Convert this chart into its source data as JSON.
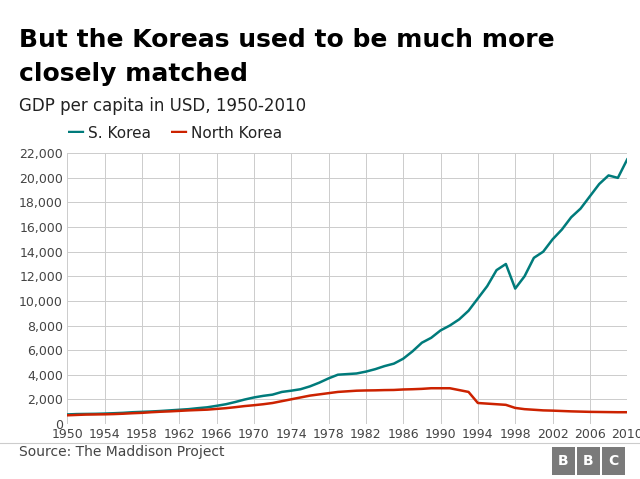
{
  "title_line1": "But the Koreas used to be much more",
  "title_line2": "closely matched",
  "subtitle": "GDP per capita in USD, 1950-2010",
  "legend_s_korea": "S. Korea",
  "legend_n_korea": "North Korea",
  "source": "Source: The Maddison Project",
  "bbc_label": "BBC",
  "s_korea_color": "#007b7b",
  "n_korea_color": "#cc2200",
  "background_color": "#ffffff",
  "grid_color": "#cccccc",
  "years": [
    1950,
    1951,
    1952,
    1953,
    1954,
    1955,
    1956,
    1957,
    1958,
    1959,
    1960,
    1961,
    1962,
    1963,
    1964,
    1965,
    1966,
    1967,
    1968,
    1969,
    1970,
    1971,
    1972,
    1973,
    1974,
    1975,
    1976,
    1977,
    1978,
    1979,
    1980,
    1981,
    1982,
    1983,
    1984,
    1985,
    1986,
    1987,
    1988,
    1989,
    1990,
    1991,
    1992,
    1993,
    1994,
    1995,
    1996,
    1997,
    1998,
    1999,
    2000,
    2001,
    2002,
    2003,
    2004,
    2005,
    2006,
    2007,
    2008,
    2009,
    2010
  ],
  "s_korea_gdp": [
    770,
    800,
    810,
    820,
    840,
    870,
    900,
    950,
    980,
    1010,
    1050,
    1100,
    1150,
    1200,
    1280,
    1350,
    1470,
    1600,
    1780,
    1980,
    2150,
    2280,
    2380,
    2600,
    2700,
    2820,
    3050,
    3350,
    3700,
    4000,
    4050,
    4100,
    4250,
    4450,
    4700,
    4900,
    5300,
    5900,
    6600,
    7000,
    7600,
    8000,
    8500,
    9200,
    10200,
    11200,
    12500,
    13000,
    11000,
    12000,
    13500,
    14000,
    15000,
    15800,
    16800,
    17500,
    18500,
    19500,
    20200,
    20000,
    21500
  ],
  "n_korea_gdp": [
    700,
    730,
    760,
    770,
    780,
    800,
    830,
    870,
    900,
    950,
    990,
    1020,
    1060,
    1100,
    1130,
    1160,
    1220,
    1280,
    1360,
    1450,
    1520,
    1600,
    1700,
    1850,
    2000,
    2150,
    2300,
    2400,
    2500,
    2600,
    2650,
    2700,
    2720,
    2730,
    2750,
    2760,
    2800,
    2820,
    2850,
    2900,
    2900,
    2900,
    2750,
    2600,
    1700,
    1650,
    1600,
    1550,
    1300,
    1200,
    1150,
    1100,
    1080,
    1050,
    1020,
    1000,
    980,
    970,
    960,
    950,
    950
  ],
  "xlim": [
    1950,
    2010
  ],
  "ylim": [
    0,
    22000
  ],
  "yticks": [
    0,
    2000,
    4000,
    6000,
    8000,
    10000,
    12000,
    14000,
    16000,
    18000,
    20000,
    22000
  ],
  "xticks": [
    1950,
    1954,
    1958,
    1962,
    1966,
    1970,
    1974,
    1978,
    1982,
    1986,
    1990,
    1994,
    1998,
    2002,
    2006,
    2010
  ],
  "title_fontsize": 18,
  "subtitle_fontsize": 12,
  "legend_fontsize": 11,
  "tick_fontsize": 9,
  "source_fontsize": 10,
  "title_color": "#000000",
  "subtitle_color": "#222222",
  "tick_color": "#444444",
  "source_color": "#444444",
  "bbc_bg_color": "#7a7a7a"
}
